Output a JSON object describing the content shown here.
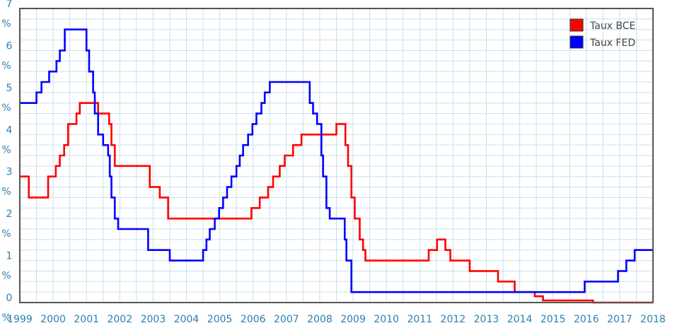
{
  "chart_data": {
    "type": "line",
    "line_style": "step",
    "title": "",
    "xlabel": "",
    "ylabel": "",
    "xlim": [
      1999,
      2018
    ],
    "ylim": [
      0,
      7
    ],
    "grid": true,
    "legend_position": "top-right",
    "colors": {
      "axis_text": "#2a7fb0",
      "grid": "#c6dff0",
      "frame": "#555555"
    },
    "x_ticks": [
      "1999",
      "2000",
      "2001",
      "2002",
      "2003",
      "2004",
      "2005",
      "2006",
      "2007",
      "2008",
      "2009",
      "2010",
      "2011",
      "2012",
      "2013",
      "2014",
      "2015",
      "2016",
      "2017",
      "2018"
    ],
    "y_ticks": [
      {
        "value": 0,
        "label": "0"
      },
      {
        "value": 1,
        "label": "1"
      },
      {
        "value": 2,
        "label": "2"
      },
      {
        "value": 3,
        "label": "3"
      },
      {
        "value": 4,
        "label": "4"
      },
      {
        "value": 5,
        "label": "5"
      },
      {
        "value": 6,
        "label": "6"
      },
      {
        "value": 7,
        "label": "7"
      }
    ],
    "y_unit": "%",
    "series": [
      {
        "name": "Taux BCE",
        "color": "#ff0000",
        "points": [
          [
            1999.0,
            3.0
          ],
          [
            1999.27,
            2.5
          ],
          [
            1999.85,
            3.0
          ],
          [
            2000.08,
            3.25
          ],
          [
            2000.2,
            3.5
          ],
          [
            2000.33,
            3.75
          ],
          [
            2000.45,
            4.25
          ],
          [
            2000.7,
            4.5
          ],
          [
            2000.8,
            4.75
          ],
          [
            2001.35,
            4.5
          ],
          [
            2001.68,
            4.25
          ],
          [
            2001.75,
            3.75
          ],
          [
            2001.85,
            3.25
          ],
          [
            2002.9,
            2.75
          ],
          [
            2003.2,
            2.5
          ],
          [
            2003.45,
            2.0
          ],
          [
            2005.95,
            2.25
          ],
          [
            2006.2,
            2.5
          ],
          [
            2006.45,
            2.75
          ],
          [
            2006.6,
            3.0
          ],
          [
            2006.8,
            3.25
          ],
          [
            2006.95,
            3.5
          ],
          [
            2007.2,
            3.75
          ],
          [
            2007.45,
            4.0
          ],
          [
            2008.5,
            4.25
          ],
          [
            2008.77,
            3.75
          ],
          [
            2008.85,
            3.25
          ],
          [
            2008.95,
            2.5
          ],
          [
            2009.05,
            2.0
          ],
          [
            2009.2,
            1.5
          ],
          [
            2009.3,
            1.25
          ],
          [
            2009.37,
            1.0
          ],
          [
            2011.27,
            1.25
          ],
          [
            2011.52,
            1.5
          ],
          [
            2011.77,
            1.25
          ],
          [
            2011.92,
            1.0
          ],
          [
            2012.5,
            0.75
          ],
          [
            2013.35,
            0.5
          ],
          [
            2013.85,
            0.25
          ],
          [
            2014.45,
            0.15
          ],
          [
            2014.7,
            0.05
          ],
          [
            2016.2,
            0.0
          ],
          [
            2018.0,
            0.0
          ]
        ]
      },
      {
        "name": "Taux FED",
        "color": "#0000ff",
        "points": [
          [
            1999.0,
            4.75
          ],
          [
            1999.5,
            5.0
          ],
          [
            1999.65,
            5.25
          ],
          [
            1999.88,
            5.5
          ],
          [
            2000.1,
            5.75
          ],
          [
            2000.2,
            6.0
          ],
          [
            2000.35,
            6.5
          ],
          [
            2001.0,
            6.0
          ],
          [
            2001.08,
            5.5
          ],
          [
            2001.2,
            5.0
          ],
          [
            2001.25,
            4.5
          ],
          [
            2001.35,
            4.0
          ],
          [
            2001.5,
            3.75
          ],
          [
            2001.65,
            3.5
          ],
          [
            2001.7,
            3.0
          ],
          [
            2001.75,
            2.5
          ],
          [
            2001.85,
            2.0
          ],
          [
            2001.95,
            1.75
          ],
          [
            2002.85,
            1.25
          ],
          [
            2003.5,
            1.0
          ],
          [
            2004.5,
            1.25
          ],
          [
            2004.6,
            1.5
          ],
          [
            2004.7,
            1.75
          ],
          [
            2004.85,
            2.0
          ],
          [
            2004.98,
            2.25
          ],
          [
            2005.1,
            2.5
          ],
          [
            2005.22,
            2.75
          ],
          [
            2005.35,
            3.0
          ],
          [
            2005.5,
            3.25
          ],
          [
            2005.6,
            3.5
          ],
          [
            2005.7,
            3.75
          ],
          [
            2005.85,
            4.0
          ],
          [
            2005.98,
            4.25
          ],
          [
            2006.1,
            4.5
          ],
          [
            2006.25,
            4.75
          ],
          [
            2006.35,
            5.0
          ],
          [
            2006.5,
            5.25
          ],
          [
            2007.7,
            4.75
          ],
          [
            2007.8,
            4.5
          ],
          [
            2007.92,
            4.25
          ],
          [
            2008.05,
            3.5
          ],
          [
            2008.1,
            3.0
          ],
          [
            2008.2,
            2.25
          ],
          [
            2008.3,
            2.0
          ],
          [
            2008.75,
            1.5
          ],
          [
            2008.8,
            1.0
          ],
          [
            2008.95,
            0.25
          ],
          [
            2015.95,
            0.5
          ],
          [
            2016.95,
            0.75
          ],
          [
            2017.2,
            1.0
          ],
          [
            2017.45,
            1.25
          ],
          [
            2018.0,
            1.25
          ]
        ]
      }
    ]
  }
}
